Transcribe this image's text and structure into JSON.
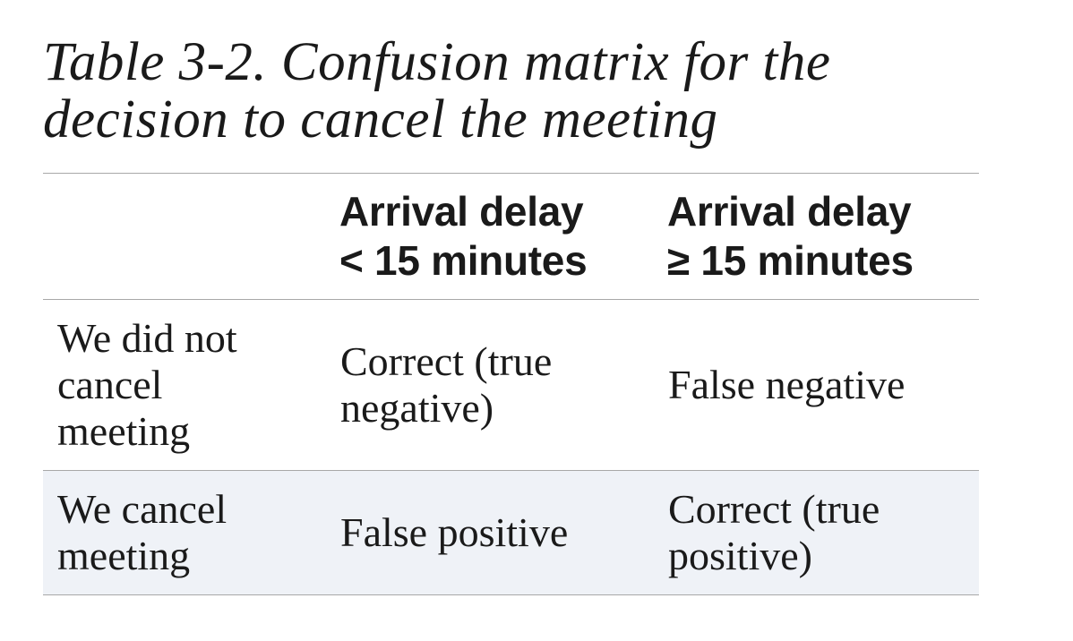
{
  "caption": {
    "line1": "Table 3-2. Confusion matrix for the",
    "line2": "decision to cancel the meeting"
  },
  "table": {
    "header": {
      "corner": "",
      "col1": {
        "line1": "Arrival delay",
        "line2": "< 15 minutes"
      },
      "col2": {
        "line1": "Arrival delay",
        "line2": "≥ 15 minutes"
      }
    },
    "rows": [
      {
        "label": {
          "line1": "We did not",
          "line2": "cancel",
          "line3": "meeting"
        },
        "cell1": {
          "line1": "Correct (true",
          "line2": "negative)"
        },
        "cell2": {
          "line1": "False negative"
        }
      },
      {
        "label": {
          "line1": "We cancel",
          "line2": "meeting"
        },
        "cell1": {
          "line1": "False positive"
        },
        "cell2": {
          "line1": "Correct (true",
          "line2": "positive)"
        }
      }
    ]
  },
  "colors": {
    "text": "#1a1a1a",
    "rule": "#a8a8a8",
    "shaded_row": "#eff2f7"
  }
}
